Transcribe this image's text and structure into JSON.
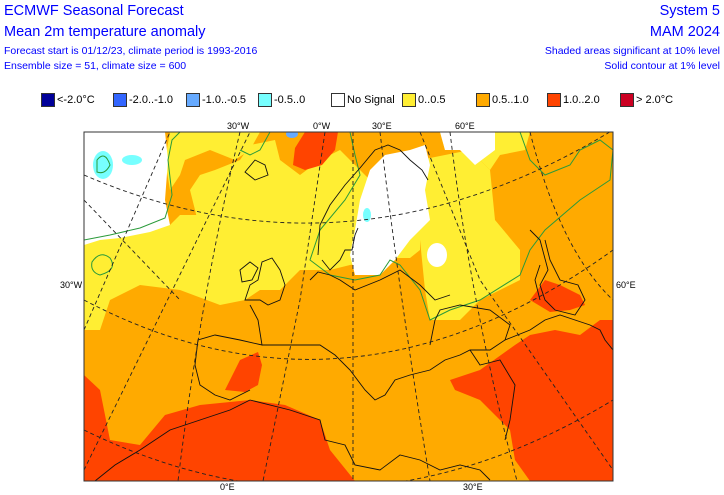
{
  "header": {
    "title": "ECMWF Seasonal Forecast",
    "subtitle": "Mean 2m temperature anomaly",
    "forecast_info": "Forecast start is 01/12/23, climate period is 1993-2016",
    "ensemble_info": "Ensemble size = 51, climate size = 600",
    "system": "System 5",
    "season": "MAM 2024",
    "significance_shaded": "Shaded areas significant at 10% level",
    "significance_contour": "Solid contour at 1% level"
  },
  "legend": [
    {
      "label": "<-2.0°C",
      "color": "#000099"
    },
    {
      "label": "-2.0..-1.0",
      "color": "#3366ff"
    },
    {
      "label": "-1.0..-0.5",
      "color": "#66aaff"
    },
    {
      "label": "-0.5..0",
      "color": "#77ffff"
    },
    {
      "label": "No Signal",
      "color": "#ffffff"
    },
    {
      "label": "0..0.5",
      "color": "#ffee33"
    },
    {
      "label": "0.5..1.0",
      "color": "#ffaa00"
    },
    {
      "label": "1.0..2.0",
      "color": "#ff4400"
    },
    {
      "label": "> 2.0°C",
      "color": "#cc0022"
    }
  ],
  "map": {
    "top_labels": [
      "30°W",
      "0°W",
      "30°E",
      "60°E"
    ],
    "left_label": "30°W",
    "right_label": "60°E",
    "bottom_labels": [
      "0°E",
      "30°E"
    ]
  }
}
